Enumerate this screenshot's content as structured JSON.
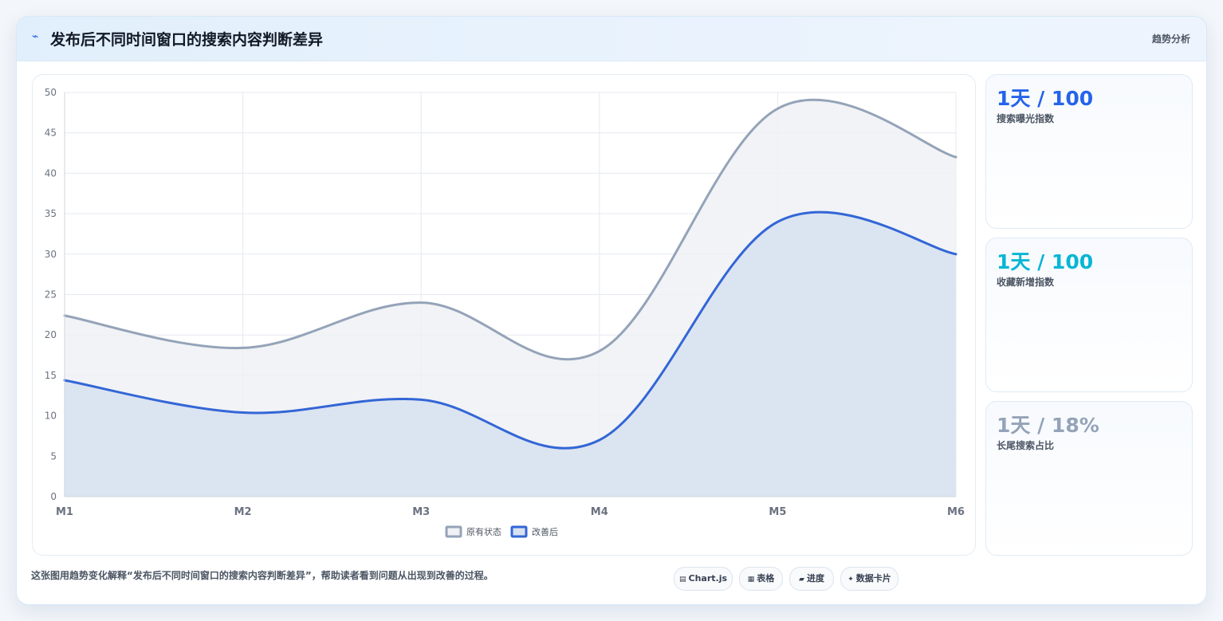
{
  "header": {
    "icon": "trend-line-icon",
    "icon_glyph": "⌁",
    "title": "发布后不同时间窗口的搜索内容判断差异",
    "tag": "趋势分析"
  },
  "colors": {
    "original_line": "#94a3b8",
    "original_fill": "#eff1f5",
    "improved_line": "#3366d6",
    "improved_fill": "#d7e1f0",
    "stat_blue": "#2563eb",
    "stat_cyan": "#06b6d4",
    "stat_gray": "#94a3b8"
  },
  "chart_data": {
    "type": "area",
    "categories": [
      "M1",
      "M2",
      "M3",
      "M4",
      "M5",
      "M6"
    ],
    "series": [
      {
        "name": "原有状态",
        "values": [
          22.4,
          18.4,
          24,
          18,
          48,
          42
        ]
      },
      {
        "name": "改善后",
        "values": [
          14.4,
          10.4,
          12,
          7,
          34,
          30
        ]
      }
    ],
    "title": "",
    "xlabel": "",
    "ylabel": "",
    "ylim": [
      0,
      50
    ],
    "yticks": [
      "0",
      "5",
      "10",
      "15",
      "20",
      "25",
      "30",
      "35",
      "40",
      "45",
      "50"
    ],
    "grid": true,
    "legend_position": "bottom-center",
    "smooth": true
  },
  "stats": [
    {
      "value": "1天 / 100",
      "label": "搜索曝光指数",
      "color": "#2563eb"
    },
    {
      "value": "1天 / 100",
      "label": "收藏新增指数",
      "color": "#06b6d4"
    },
    {
      "value": "1天 / 18%",
      "label": "长尾搜索占比",
      "color": "#94a3b8"
    }
  ],
  "footer": {
    "note": "这张图用趋势变化解释“发布后不同时间窗口的搜索内容判断差异”，帮助读者看到问题从出现到改善的过程。",
    "chips": [
      {
        "icon": "chart-icon",
        "glyph": "▤",
        "label": "Chart.js"
      },
      {
        "icon": "table-icon",
        "glyph": "▦",
        "label": "表格"
      },
      {
        "icon": "progress-icon",
        "glyph": "▰",
        "label": "进度"
      },
      {
        "icon": "data-card-icon",
        "glyph": "✦",
        "label": "数据卡片"
      }
    ]
  }
}
